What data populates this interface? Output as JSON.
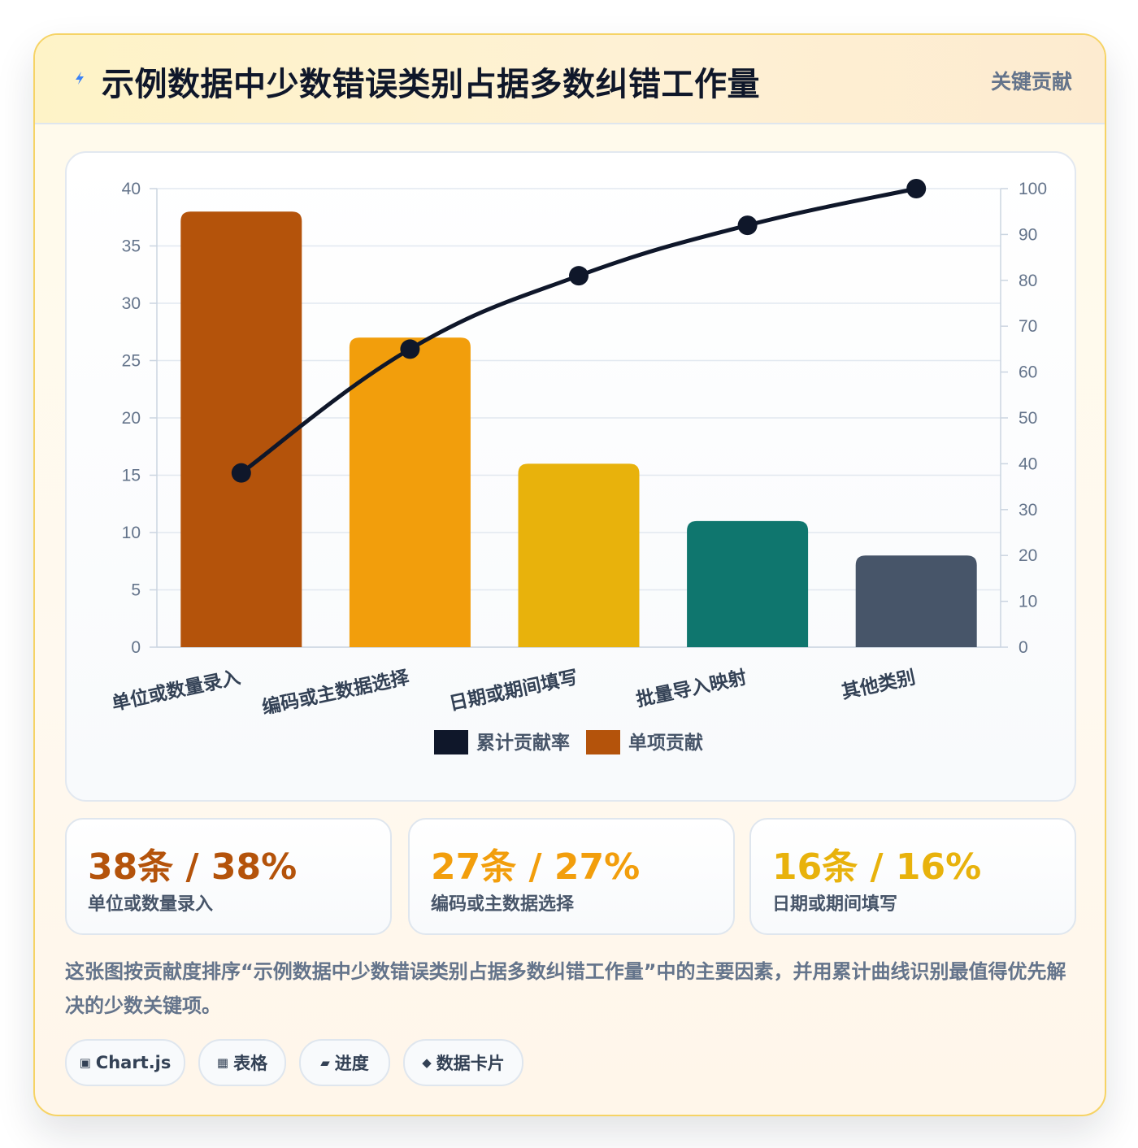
{
  "header": {
    "icon": "lightning-icon",
    "title": "示例数据中少数错误类别占据多数纠错工作量",
    "badge": "关键贡献"
  },
  "chart_data": {
    "type": "bar",
    "categories": [
      "单位或数量录入",
      "编码或主数据选择",
      "日期或期间填写",
      "批量导入映射",
      "其他类别"
    ],
    "series": [
      {
        "name": "单项贡献",
        "type": "bar",
        "axis": "left",
        "values": [
          38,
          27,
          16,
          11,
          8
        ],
        "colors": [
          "#b4530b",
          "#f29e0c",
          "#e8b20c",
          "#0f766e",
          "#475569"
        ]
      },
      {
        "name": "累计贡献率",
        "type": "line",
        "axis": "right",
        "values": [
          38,
          65,
          81,
          92,
          100
        ],
        "color": "#0f172a"
      }
    ],
    "y_left": {
      "min": 0,
      "max": 40,
      "ticks": [
        0,
        5,
        10,
        15,
        20,
        25,
        30,
        35,
        40
      ]
    },
    "y_right": {
      "min": 0,
      "max": 100,
      "ticks": [
        0,
        10,
        20,
        30,
        40,
        50,
        60,
        70,
        80,
        90,
        100
      ]
    },
    "legend": {
      "position": "bottom",
      "items": [
        {
          "label": "累计贡献率",
          "color": "#0f172a"
        },
        {
          "label": "单项贡献",
          "color": "#b4530b"
        }
      ]
    },
    "grid": true
  },
  "stats": [
    {
      "value": "38条 / 38%",
      "label": "单位或数量录入",
      "color": "#b4530b"
    },
    {
      "value": "27条 / 27%",
      "label": "编码或主数据选择",
      "color": "#f29e0c"
    },
    {
      "value": "16条 / 16%",
      "label": "日期或期间填写",
      "color": "#e8b20c"
    }
  ],
  "description": "这张图按贡献度排序“示例数据中少数错误类别占据多数纠错工作量”中的主要因素，并用累计曲线识别最值得优先解决的少数关键项。",
  "chips": [
    {
      "icon": "▣",
      "icon_name": "chart-icon",
      "label": "Chart.js"
    },
    {
      "icon": "▦",
      "icon_name": "table-icon",
      "label": "表格"
    },
    {
      "icon": "▰",
      "icon_name": "progress-icon",
      "label": "进度"
    },
    {
      "icon": "◆",
      "icon_name": "diamond-icon",
      "label": "数据卡片"
    }
  ]
}
